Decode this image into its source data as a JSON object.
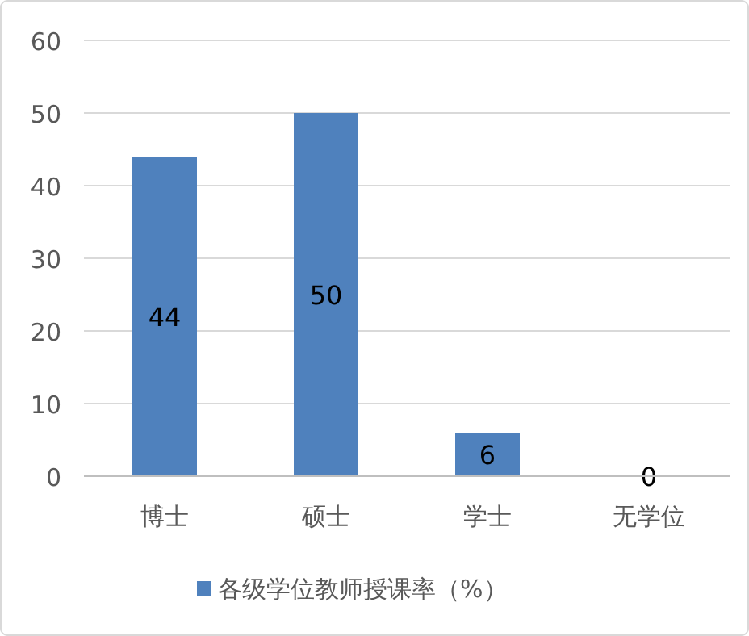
{
  "chart_data": {
    "type": "bar",
    "categories": [
      "博士",
      "硕士",
      "学士",
      "无学位"
    ],
    "series": [
      {
        "name": "各级学位教师授课率（%）",
        "color": "#4f81bd",
        "values": [
          44,
          50,
          6,
          0
        ]
      }
    ],
    "ylim": [
      0,
      60
    ],
    "yticks": [
      0,
      10,
      20,
      30,
      40,
      50,
      60
    ],
    "grid": "y",
    "legend": "bottom",
    "data_labels": true
  }
}
